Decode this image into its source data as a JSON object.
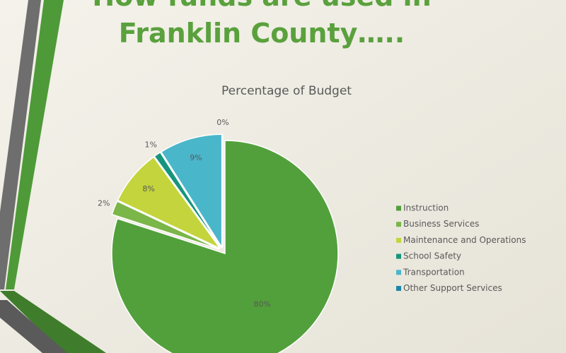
{
  "slide": {
    "title_lines": [
      "How funds are used in",
      "Franklin County….."
    ]
  },
  "chart_data": {
    "type": "pie",
    "title": "Percentage of Budget",
    "categories": [
      "Instruction",
      "Business Services",
      "Maintenance and Operations",
      "School Safety",
      "Transportation",
      "Other Support Services"
    ],
    "values": [
      80,
      2,
      8,
      1,
      9,
      0
    ],
    "value_labels": [
      "80%",
      "2%",
      "8%",
      "1%",
      "9%",
      "0%"
    ],
    "colors": [
      "#52a03b",
      "#7ab648",
      "#c4d43c",
      "#16957c",
      "#4ab6ca",
      "#1b87a8"
    ],
    "legend": "right"
  }
}
